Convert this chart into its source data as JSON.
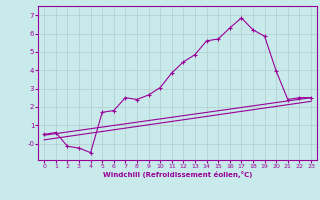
{
  "xlabel": "Windchill (Refroidissement éolien,°C)",
  "bg_color": "#c8eaea",
  "line_color": "#990099",
  "grid_color": "#b0cccc",
  "xlim": [
    -0.5,
    23.5
  ],
  "ylim": [
    -0.9,
    7.5
  ],
  "xticks": [
    0,
    1,
    2,
    3,
    4,
    5,
    6,
    7,
    8,
    9,
    10,
    11,
    12,
    13,
    14,
    15,
    16,
    17,
    18,
    19,
    20,
    21,
    22,
    23
  ],
  "yticks": [
    0,
    1,
    2,
    3,
    4,
    5,
    6,
    7
  ],
  "line1_x": [
    0,
    1,
    2,
    3,
    4,
    5,
    6,
    7,
    8,
    9,
    10,
    11,
    12,
    13,
    14,
    15,
    16,
    17,
    18,
    19,
    20,
    21,
    22,
    23
  ],
  "line1_y": [
    0.5,
    0.6,
    -0.15,
    -0.25,
    -0.5,
    1.7,
    1.8,
    2.5,
    2.4,
    2.65,
    3.05,
    3.85,
    4.45,
    4.85,
    5.6,
    5.7,
    6.3,
    6.85,
    6.2,
    5.85,
    3.95,
    2.4,
    2.5,
    2.5
  ],
  "line2_x": [
    0,
    23
  ],
  "line2_y": [
    0.45,
    2.5
  ],
  "line3_x": [
    0,
    23
  ],
  "line3_y": [
    0.2,
    2.3
  ],
  "marker": "+"
}
